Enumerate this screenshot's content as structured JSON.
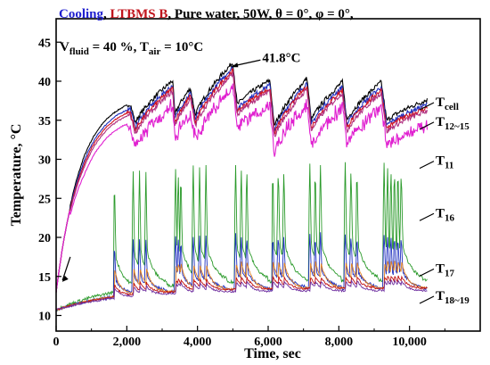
{
  "chart_data": {
    "type": "line",
    "xlabel": "Time, sec",
    "ylabel": "Temperature, °C",
    "xlim": [
      0,
      12000
    ],
    "ylim": [
      8,
      48
    ],
    "xticks": [
      0,
      2000,
      4000,
      6000,
      8000,
      10000
    ],
    "xtick_labels": [
      "0",
      "2,000",
      "4,000",
      "6,000",
      "8,000",
      "10,000"
    ],
    "yticks": [
      10,
      15,
      20,
      25,
      30,
      35,
      40,
      45
    ],
    "ytick_labels": [
      "10",
      "15",
      "20",
      "25",
      "30",
      "35",
      "40",
      "45"
    ],
    "grid": false,
    "header": {
      "part1": "Cooling",
      "part1_color": "#1f1fcf",
      "part2": "LTBMS B",
      "part2_color": "#c0141c",
      "part3": ", Pure water, 50W, θ = 0°, φ = 0°,"
    },
    "conditions": {
      "v_fluid_label": "V",
      "v_fluid_sub": "fluid",
      "v_fluid_value": " = 40 %, ",
      "t_air_label": "T",
      "t_air_sub": "air",
      "t_air_value": " = 10°C"
    },
    "peak_annotation": {
      "text": "41.8°C",
      "x": 4900,
      "y": 41.8
    },
    "cycles": [
      {
        "end": 2100,
        "peak": 36.5,
        "pull": 2.5,
        "spikes": 0
      },
      {
        "end": 3300,
        "peak": 39.5,
        "pull": 4.5,
        "spikes": 3
      },
      {
        "end": 3800,
        "peak": 38.5,
        "pull": 3.5,
        "spikes": 3
      },
      {
        "end": 5000,
        "peak": 41.8,
        "pull": 5.5,
        "spikes": 3
      },
      {
        "end": 6050,
        "peak": 39.5,
        "pull": 6.0,
        "spikes": 3
      },
      {
        "end": 7100,
        "peak": 39.8,
        "pull": 5.5,
        "spikes": 3
      },
      {
        "end": 8100,
        "peak": 39.3,
        "pull": 5.0,
        "spikes": 3
      },
      {
        "end": 9200,
        "peak": 39.3,
        "pull": 5.0,
        "spikes": 3
      },
      {
        "end": 10500,
        "peak": 37.0,
        "pull": 3.0,
        "spikes": 6
      }
    ],
    "series": [
      {
        "id": "t_cell",
        "color": "#000000",
        "offset": 0.6,
        "label": "T",
        "sub": "cell",
        "label_y": 36.8
      },
      {
        "id": "t_12_15_a",
        "color": "#1f2fbf",
        "offset": 0.0,
        "label": "T",
        "sub": "12~15",
        "label_y": 34.3
      },
      {
        "id": "t_12_15_b",
        "color": "#d01020",
        "offset": -0.4
      },
      {
        "id": "t_12_15_c",
        "color": "#b03080",
        "offset": -0.8
      },
      {
        "id": "t_11",
        "color": "#e020d0",
        "offset": -1.8,
        "label": "T",
        "sub": "11",
        "label_y": 29.3
      },
      {
        "id": "t_16",
        "color": "#2a9a2a",
        "kind": "spiky",
        "base": 14.5,
        "amp": 15,
        "label": "T",
        "sub": "16",
        "label_y": 22.6
      },
      {
        "id": "t_16_sub",
        "color": "#2030c0",
        "kind": "spiky",
        "base": 13.5,
        "amp": 7
      },
      {
        "id": "t_17",
        "color": "#e08020",
        "kind": "low",
        "base": 13.6,
        "amp": 3.5,
        "label": "T",
        "sub": "17",
        "label_y": 15.5
      },
      {
        "id": "t_18",
        "color": "#c01010",
        "kind": "low",
        "base": 13.5,
        "amp": 1.6,
        "label": "T",
        "sub": "18~19",
        "label_y": 12.0
      },
      {
        "id": "t_19",
        "color": "#7030a0",
        "kind": "low",
        "base": 13.2,
        "amp": 1.3
      }
    ]
  }
}
